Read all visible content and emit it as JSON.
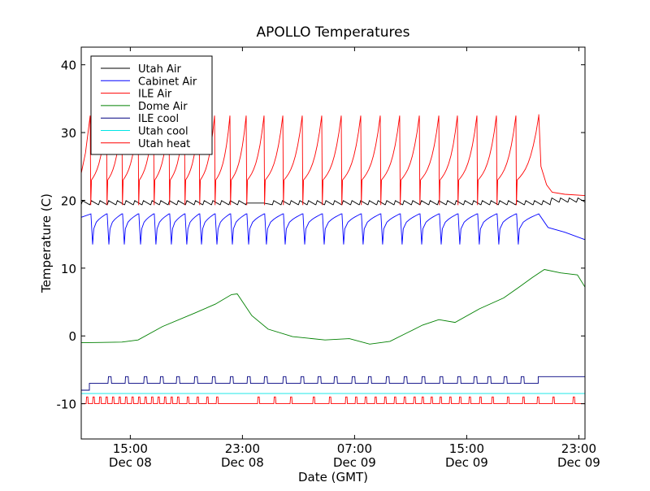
{
  "chart_data": {
    "type": "line",
    "title": "APOLLO Temperatures",
    "xlabel": "Date (GMT)",
    "ylabel": "Temperature (C)",
    "x_units": "hours since 11:30 Dec 08 (GMT)",
    "xlim": [
      0,
      35.94
    ],
    "ylim": [
      -15.2,
      42.6
    ],
    "grid": false,
    "legend_position": "top-left",
    "yticks": [
      {
        "value": -10,
        "label": "-10"
      },
      {
        "value": 0,
        "label": "0"
      },
      {
        "value": 10,
        "label": "10"
      },
      {
        "value": 20,
        "label": "20"
      },
      {
        "value": 30,
        "label": "30"
      },
      {
        "value": 40,
        "label": "40"
      }
    ],
    "xticks": [
      {
        "value": 3.5,
        "time": "15:00",
        "date": "Dec 08"
      },
      {
        "value": 11.5,
        "time": "23:00",
        "date": "Dec 08"
      },
      {
        "value": 19.5,
        "time": "07:00",
        "date": "Dec 09"
      },
      {
        "value": 27.5,
        "time": "15:00",
        "date": "Dec 09"
      },
      {
        "value": 35.5,
        "time": "23:00",
        "date": "Dec 09"
      }
    ],
    "series": [
      {
        "name": "Utah Air",
        "color": "#000000",
        "kind": "sawtooth",
        "base": 19.6,
        "amplitude": 0.6,
        "period": 0.62,
        "end_value": 20.0,
        "quiet_from": 11.5,
        "quiet_to": 13.3
      },
      {
        "name": "Cabinet Air",
        "color": "#0000ff",
        "kind": "cycles",
        "low": 13.5,
        "high": 18.0,
        "tail": [
          [
            32.64,
            18.0
          ],
          [
            33.3,
            16.0
          ],
          [
            34.5,
            15.3
          ],
          [
            35.94,
            14.2
          ]
        ]
      },
      {
        "name": "ILE Air",
        "color": "#ff0000",
        "kind": "cycles",
        "peak": 32.5,
        "drop": 19.3,
        "reset": 23.0,
        "peaks": [
          0.64,
          1.8,
          2.9,
          4.06,
          5.16,
          6.26,
          7.36,
          8.41,
          9.51,
          10.61,
          11.77,
          13.04,
          14.38,
          15.77,
          17.16,
          18.55,
          19.94,
          21.33,
          22.72,
          24.12,
          25.51,
          26.84,
          28.23,
          29.62,
          31.01,
          32.64
        ],
        "tail": [
          [
            32.64,
            32.7
          ],
          [
            32.8,
            25.0
          ],
          [
            33.2,
            22.3
          ],
          [
            33.6,
            21.2
          ],
          [
            34.5,
            20.9
          ],
          [
            35.94,
            20.7
          ]
        ]
      },
      {
        "name": "Dome Air",
        "color": "#008000",
        "kind": "points",
        "points": [
          [
            0,
            -1.0
          ],
          [
            2.9,
            -0.9
          ],
          [
            4.06,
            -0.6
          ],
          [
            5.8,
            1.4
          ],
          [
            8.12,
            3.4
          ],
          [
            9.57,
            4.7
          ],
          [
            10.72,
            6.1
          ],
          [
            11.13,
            6.2
          ],
          [
            12.17,
            3.0
          ],
          [
            13.33,
            1.0
          ],
          [
            15.07,
            -0.1
          ],
          [
            17.39,
            -0.6
          ],
          [
            19.13,
            -0.4
          ],
          [
            20.58,
            -1.2
          ],
          [
            22.03,
            -0.8
          ],
          [
            23.19,
            0.4
          ],
          [
            24.35,
            1.6
          ],
          [
            25.51,
            2.4
          ],
          [
            26.67,
            2.0
          ],
          [
            28.41,
            4.0
          ],
          [
            30.14,
            5.6
          ],
          [
            31.3,
            7.3
          ],
          [
            32.17,
            8.6
          ],
          [
            33.04,
            9.8
          ],
          [
            34.2,
            9.3
          ],
          [
            35.4,
            9.0
          ],
          [
            35.94,
            7.2
          ]
        ]
      },
      {
        "name": "ILE cool",
        "color": "#000080",
        "kind": "pulses",
        "base_start": -8.0,
        "step_at": 0.58,
        "base": -7.0,
        "high": -6.0,
        "width": 0.22,
        "hold_from": 32.6,
        "pulses": [
          1.91,
          3.13,
          4.46,
          5.62,
          6.78,
          8.06,
          9.33,
          10.61,
          11.83,
          13.04,
          14.38,
          15.65,
          16.87,
          18.03,
          19.3,
          20.46,
          21.74,
          23.01,
          24.29,
          25.57,
          26.84,
          28.0,
          28.99,
          30.14,
          31.36
        ]
      },
      {
        "name": "Utah cool",
        "color": "#00e5e5",
        "kind": "points",
        "points": [
          [
            0,
            -8.5
          ],
          [
            35.94,
            -8.5
          ]
        ]
      },
      {
        "name": "Utah heat",
        "color": "#ff0000",
        "kind": "pulses",
        "base": -10.0,
        "high": -9.0,
        "width": 0.12,
        "base_start": -10.0,
        "step_at": 0,
        "pulses": [
          0.35,
          0.81,
          1.28,
          1.74,
          2.2,
          2.67,
          3.13,
          3.59,
          4.06,
          4.52,
          4.99,
          5.45,
          5.91,
          6.38,
          6.84,
          7.54,
          8.24,
          8.93,
          9.63,
          12.58,
          13.74,
          14.9,
          16.52,
          17.68,
          18.84,
          19.54,
          20.23,
          20.93,
          21.62,
          22.32,
          23.01,
          23.71,
          24.29,
          24.93,
          25.57,
          26.26,
          26.96,
          27.65,
          28.41,
          29.28,
          30.38,
          31.48,
          32.52,
          33.62,
          35.07
        ]
      }
    ]
  }
}
